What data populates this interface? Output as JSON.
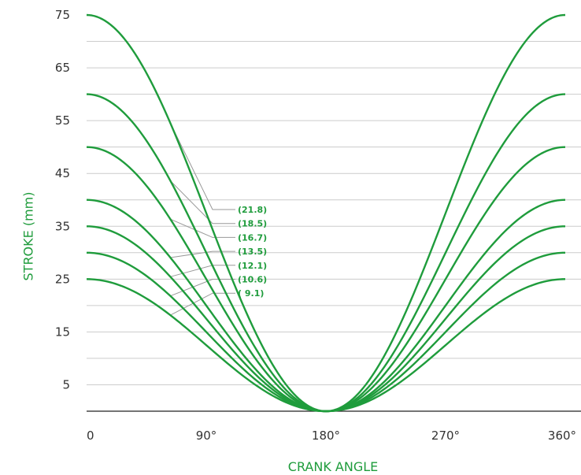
{
  "chart_data": {
    "type": "line",
    "xlabel": "CRANK ANGLE",
    "ylabel": "STROKE (mm)",
    "xlim": [
      0,
      360
    ],
    "ylim": [
      0,
      75
    ],
    "x_ticks": [
      {
        "value": 0,
        "label": "0"
      },
      {
        "value": 90,
        "label": "90°"
      },
      {
        "value": 180,
        "label": "180°"
      },
      {
        "value": 270,
        "label": "270°"
      },
      {
        "value": 360,
        "label": "360°"
      }
    ],
    "y_ticks": [
      {
        "value": 5,
        "label": "5"
      },
      {
        "value": 15,
        "label": "15"
      },
      {
        "value": 25,
        "label": "25"
      },
      {
        "value": 35,
        "label": "35"
      },
      {
        "value": 45,
        "label": "45"
      },
      {
        "value": 55,
        "label": "55"
      },
      {
        "value": 65,
        "label": "65"
      },
      {
        "value": 75,
        "label": "75"
      }
    ],
    "gridlines_y": [
      5,
      10,
      15,
      20,
      25,
      30,
      35,
      40,
      45,
      50,
      55,
      60,
      65,
      70
    ],
    "grid": true,
    "series": [
      {
        "annotation": "(21.8)",
        "max_stroke": 75
      },
      {
        "annotation": "(18.5)",
        "max_stroke": 60
      },
      {
        "annotation": "(16.7)",
        "max_stroke": 50
      },
      {
        "annotation": "(13.5)",
        "max_stroke": 40
      },
      {
        "annotation": "(12.1)",
        "max_stroke": 35
      },
      {
        "annotation": "(10.6)",
        "max_stroke": 30
      },
      {
        "annotation": "( 9.1)",
        "max_stroke": 25
      }
    ],
    "curve_shape": "stroke = max_stroke × (1 + cos(angle)) / 2",
    "colors": {
      "line": "#1f9c3c",
      "text": "#333333",
      "grid": "#cccccc",
      "axis": "#222222",
      "leader": "#999999"
    }
  }
}
